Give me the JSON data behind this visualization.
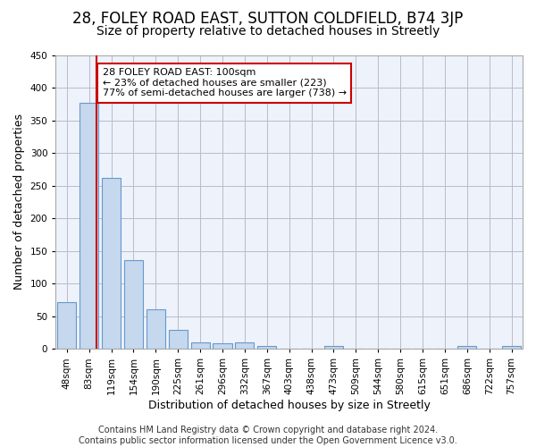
{
  "title": "28, FOLEY ROAD EAST, SUTTON COLDFIELD, B74 3JP",
  "subtitle": "Size of property relative to detached houses in Streetly",
  "xlabel": "Distribution of detached houses by size in Streetly",
  "ylabel": "Number of detached properties",
  "footer_line1": "Contains HM Land Registry data © Crown copyright and database right 2024.",
  "footer_line2": "Contains public sector information licensed under the Open Government Licence v3.0.",
  "bin_labels": [
    "48sqm",
    "83sqm",
    "119sqm",
    "154sqm",
    "190sqm",
    "225sqm",
    "261sqm",
    "296sqm",
    "332sqm",
    "367sqm",
    "403sqm",
    "438sqm",
    "473sqm",
    "509sqm",
    "544sqm",
    "580sqm",
    "615sqm",
    "651sqm",
    "686sqm",
    "722sqm",
    "757sqm"
  ],
  "bar_values": [
    72,
    377,
    262,
    136,
    60,
    29,
    10,
    9,
    10,
    5,
    0,
    0,
    4,
    0,
    0,
    0,
    0,
    0,
    4,
    0,
    4
  ],
  "bar_color": "#c5d8ee",
  "bar_edge_color": "#6699cc",
  "red_line_x": 1.35,
  "annotation_text": "28 FOLEY ROAD EAST: 100sqm\n← 23% of detached houses are smaller (223)\n77% of semi-detached houses are larger (738) →",
  "annotation_box_color": "white",
  "annotation_box_edge_color": "#cc0000",
  "red_line_color": "#cc0000",
  "ylim": [
    0,
    450
  ],
  "yticks": [
    0,
    50,
    100,
    150,
    200,
    250,
    300,
    350,
    400,
    450
  ],
  "background_color": "#ffffff",
  "plot_bg_color": "#eef2fa",
  "grid_color": "#bbbbcc",
  "title_fontsize": 12,
  "subtitle_fontsize": 10,
  "axis_label_fontsize": 9,
  "tick_fontsize": 7.5,
  "footer_fontsize": 7,
  "annotation_fontsize": 8
}
